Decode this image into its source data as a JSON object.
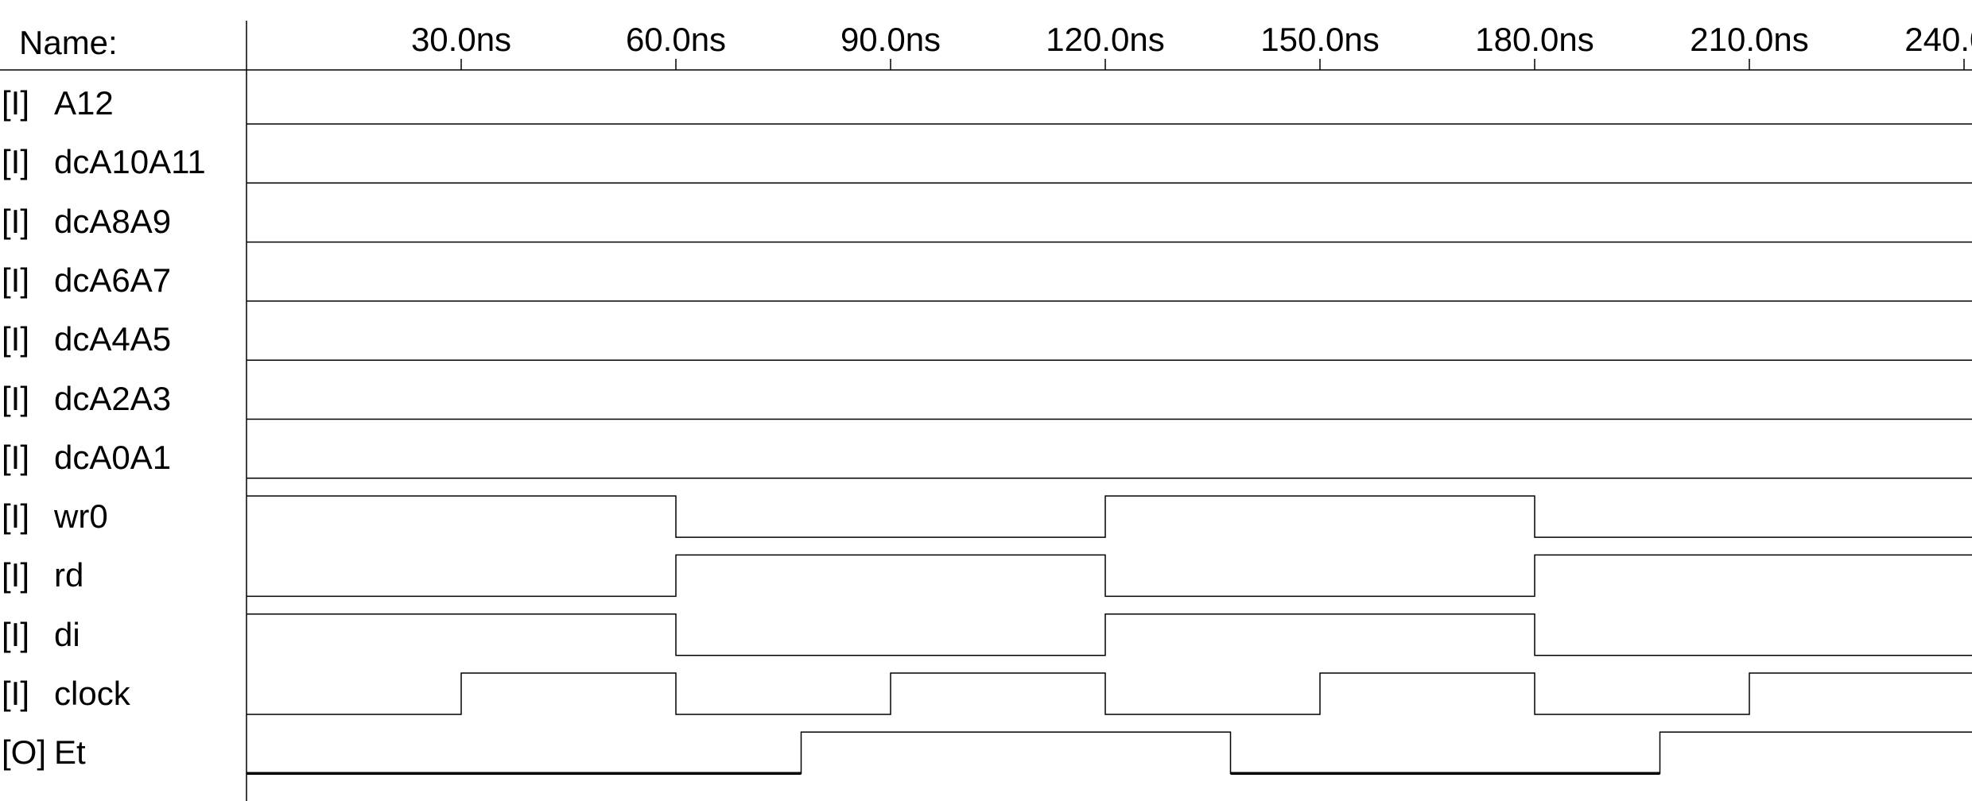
{
  "header": {
    "names_label": "Name:"
  },
  "time": {
    "unit": "ns",
    "start": 0,
    "end": 250,
    "ticks": [
      {
        "t": 30,
        "label": "30.0ns"
      },
      {
        "t": 60,
        "label": "60.0ns"
      },
      {
        "t": 90,
        "label": "90.0ns"
      },
      {
        "t": 120,
        "label": "120.0ns"
      },
      {
        "t": 150,
        "label": "150.0ns"
      },
      {
        "t": 180,
        "label": "180.0ns"
      },
      {
        "t": 210,
        "label": "210.0ns"
      },
      {
        "t": 240,
        "label": "240.0ns"
      }
    ]
  },
  "signals": [
    {
      "type": "[I]",
      "name": "A12",
      "changes": [
        [
          0,
          0
        ]
      ]
    },
    {
      "type": "[I]",
      "name": "dcA10A11",
      "changes": [
        [
          0,
          0
        ]
      ]
    },
    {
      "type": "[I]",
      "name": "dcA8A9",
      "changes": [
        [
          0,
          0
        ]
      ]
    },
    {
      "type": "[I]",
      "name": "dcA6A7",
      "changes": [
        [
          0,
          0
        ]
      ]
    },
    {
      "type": "[I]",
      "name": "dcA4A5",
      "changes": [
        [
          0,
          0
        ]
      ]
    },
    {
      "type": "[I]",
      "name": "dcA2A3",
      "changes": [
        [
          0,
          0
        ]
      ]
    },
    {
      "type": "[I]",
      "name": "dcA0A1",
      "changes": [
        [
          0,
          0
        ]
      ]
    },
    {
      "type": "[I]",
      "name": "wr0",
      "changes": [
        [
          0,
          1
        ],
        [
          60,
          0
        ],
        [
          120,
          1
        ],
        [
          180,
          0
        ]
      ]
    },
    {
      "type": "[I]",
      "name": "rd",
      "changes": [
        [
          0,
          0
        ],
        [
          60,
          1
        ],
        [
          120,
          0
        ],
        [
          180,
          1
        ]
      ]
    },
    {
      "type": "[I]",
      "name": "di",
      "changes": [
        [
          0,
          1
        ],
        [
          60,
          0
        ],
        [
          120,
          1
        ],
        [
          180,
          0
        ]
      ]
    },
    {
      "type": "[I]",
      "name": "clock",
      "changes": [
        [
          0,
          0
        ],
        [
          30,
          1
        ],
        [
          60,
          0
        ],
        [
          90,
          1
        ],
        [
          120,
          0
        ],
        [
          150,
          1
        ],
        [
          180,
          0
        ],
        [
          210,
          1
        ]
      ]
    },
    {
      "type": "[O]",
      "name": "Et",
      "changes": [
        [
          0,
          0
        ],
        [
          77.5,
          1
        ],
        [
          137.5,
          0
        ],
        [
          197.5,
          1
        ]
      ],
      "bold_low": true
    }
  ]
}
